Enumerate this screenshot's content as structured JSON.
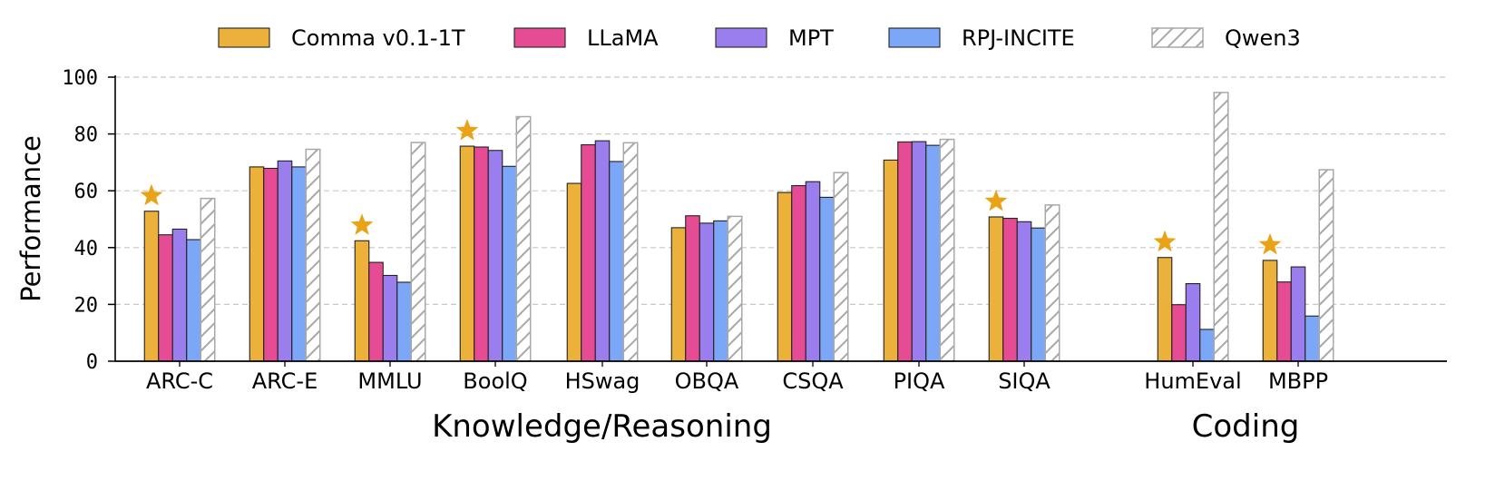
{
  "chart_data": {
    "type": "bar",
    "ylabel": "Performance",
    "ylim": [
      0,
      100
    ],
    "yticks": [
      "0",
      "20",
      "40",
      "60",
      "80",
      "100"
    ],
    "grid": "horizontal dashed",
    "legend_position": "top",
    "categories": [
      "ARC-C",
      "ARC-E",
      "MMLU",
      "BoolQ",
      "HSwag",
      "OBQA",
      "CSQA",
      "PIQA",
      "SIQA",
      "HumEval",
      "MBPP"
    ],
    "groups": [
      {
        "label": "Knowledge/Reasoning",
        "categories": [
          "ARC-C",
          "ARC-E",
          "MMLU",
          "BoolQ",
          "HSwag",
          "OBQA",
          "CSQA",
          "PIQA",
          "SIQA"
        ]
      },
      {
        "label": "Coding",
        "categories": [
          "HumEval",
          "MBPP"
        ]
      }
    ],
    "series": [
      {
        "name": "Comma v0.1-1T",
        "color": "#ECB13A",
        "pattern": "solid",
        "values": [
          52.8,
          68.4,
          42.4,
          75.7,
          62.6,
          47.0,
          59.4,
          70.8,
          50.8,
          36.5,
          35.5
        ]
      },
      {
        "name": "LLaMA",
        "color": "#E64C93",
        "pattern": "solid",
        "values": [
          44.5,
          67.9,
          34.8,
          75.4,
          76.2,
          51.2,
          61.8,
          77.2,
          50.3,
          19.9,
          27.9
        ]
      },
      {
        "name": "MPT",
        "color": "#9A7EEE",
        "pattern": "solid",
        "values": [
          46.5,
          70.5,
          30.2,
          74.2,
          77.6,
          48.6,
          63.2,
          77.3,
          49.1,
          27.3,
          33.2
        ]
      },
      {
        "name": "RPJ-INCITE",
        "color": "#7BA7F6",
        "pattern": "solid",
        "values": [
          42.8,
          68.4,
          27.8,
          68.6,
          70.3,
          49.4,
          57.7,
          76.0,
          46.9,
          11.2,
          15.9
        ]
      },
      {
        "name": "Qwen3",
        "color": "#ffffff",
        "pattern": "hatched",
        "values": [
          57.3,
          74.6,
          77.0,
          86.1,
          76.9,
          51.0,
          66.4,
          78.1,
          55.0,
          94.6,
          67.4
        ]
      }
    ],
    "star_marker": {
      "series": "Comma v0.1-1T",
      "color": "#E8A317",
      "categories": [
        "ARC-C",
        "MMLU",
        "BoolQ",
        "SIQA",
        "HumEval",
        "MBPP"
      ]
    }
  }
}
